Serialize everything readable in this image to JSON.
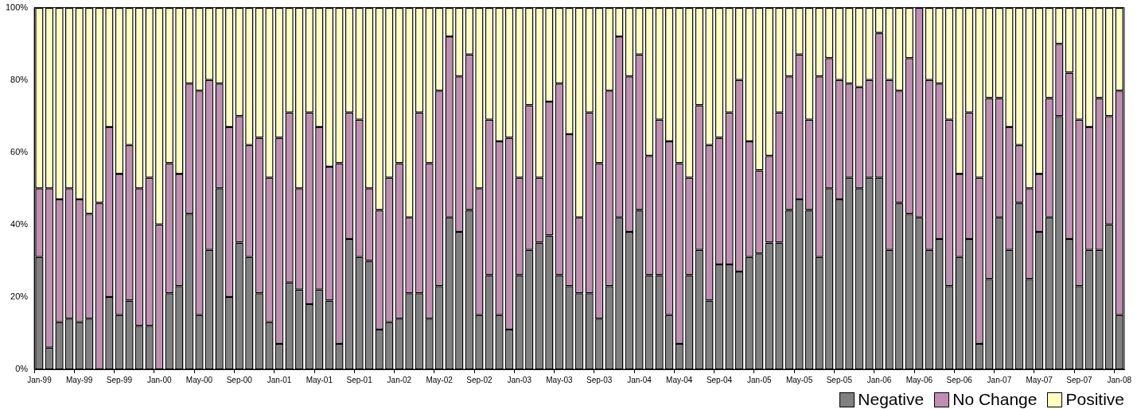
{
  "chart_data": {
    "type": "bar",
    "stacked": true,
    "legend": "bottom right",
    "categories": [
      "Jan-99",
      null,
      null,
      null,
      "May-99",
      null,
      null,
      null,
      "Sep-99",
      null,
      null,
      null,
      "Jan-00",
      null,
      null,
      null,
      "May-00",
      null,
      null,
      null,
      "Sep-00",
      null,
      null,
      null,
      "Jan-01",
      null,
      null,
      null,
      "May-01",
      null,
      null,
      null,
      "Sep-01",
      null,
      null,
      null,
      "Jan-02",
      null,
      null,
      null,
      "May-02",
      null,
      null,
      null,
      "Sep-02",
      null,
      null,
      null,
      "Jan-03",
      null,
      null,
      null,
      "May-03",
      null,
      null,
      null,
      "Sep-03",
      null,
      null,
      null,
      "Jan-04",
      null,
      null,
      null,
      "May-04",
      null,
      null,
      null,
      "Sep-04",
      null,
      null,
      null,
      "Jan-05",
      null,
      null,
      null,
      "May-05",
      null,
      null,
      null,
      "Sep-05",
      null,
      null,
      null,
      "Jan-06",
      null,
      null,
      null,
      "May-06",
      null,
      null,
      null,
      "Sep-06",
      null,
      null,
      null,
      "Jan-07",
      null,
      null,
      null,
      "May-07",
      null,
      null,
      null,
      "Sep-07",
      null,
      null,
      null,
      "Jan-08"
    ],
    "series": [
      {
        "name": "Negative",
        "color": "#808080",
        "values": [
          31,
          6,
          13,
          14,
          13,
          14,
          0,
          20,
          15,
          19,
          12,
          12,
          0,
          21,
          23,
          43,
          15,
          33,
          50,
          20,
          35,
          31,
          21,
          13,
          7,
          24,
          22,
          18,
          22,
          19,
          7,
          36,
          31,
          30,
          11,
          13,
          14,
          21,
          21,
          14,
          23,
          42,
          38,
          44,
          15,
          26,
          15,
          11,
          26,
          33,
          35,
          37,
          26,
          23,
          21,
          21,
          14,
          23,
          42,
          38,
          44,
          26,
          26,
          15,
          7,
          26,
          33,
          19,
          29,
          29,
          27,
          31,
          32,
          35,
          35,
          44,
          47,
          44,
          31,
          50,
          47,
          53,
          50,
          53,
          53,
          33,
          46,
          43,
          42,
          33,
          36,
          23,
          31,
          36,
          7,
          25,
          42,
          33,
          46,
          25,
          38,
          42,
          70,
          36,
          23,
          33,
          33,
          40,
          15
        ]
      },
      {
        "name": "No Change",
        "color": "#c08eb0",
        "values": [
          19,
          44,
          34,
          36,
          34,
          29,
          46,
          47,
          39,
          43,
          38,
          41,
          40,
          36,
          31,
          36,
          62,
          47,
          29,
          47,
          35,
          31,
          43,
          40,
          57,
          47,
          28,
          53,
          45,
          37,
          50,
          35,
          38,
          20,
          33,
          40,
          43,
          21,
          50,
          43,
          54,
          50,
          43,
          43,
          35,
          43,
          48,
          53,
          27,
          40,
          18,
          37,
          53,
          42,
          21,
          50,
          43,
          54,
          50,
          43,
          43,
          33,
          43,
          48,
          50,
          27,
          40,
          43,
          35,
          42,
          53,
          32,
          23,
          24,
          36,
          37,
          40,
          25,
          50,
          36,
          33,
          26,
          28,
          27,
          40,
          47,
          31,
          43,
          58,
          47,
          43,
          46,
          23,
          35,
          46,
          50,
          33,
          34,
          16,
          25,
          16,
          33,
          20,
          46,
          46,
          34,
          42,
          30,
          62
        ]
      },
      {
        "name": "Positive",
        "color": "#ffffc0",
        "values": [
          50,
          50,
          53,
          50,
          53,
          57,
          54,
          33,
          46,
          38,
          50,
          47,
          60,
          43,
          46,
          21,
          23,
          20,
          21,
          33,
          30,
          38,
          36,
          47,
          36,
          29,
          50,
          29,
          33,
          44,
          43,
          29,
          31,
          50,
          56,
          47,
          43,
          58,
          29,
          43,
          23,
          8,
          19,
          13,
          50,
          31,
          37,
          36,
          47,
          27,
          47,
          26,
          21,
          35,
          58,
          29,
          43,
          23,
          8,
          19,
          13,
          41,
          31,
          37,
          43,
          47,
          27,
          38,
          36,
          29,
          20,
          37,
          45,
          41,
          29,
          19,
          13,
          31,
          19,
          14,
          20,
          21,
          22,
          20,
          7,
          20,
          23,
          14,
          0,
          20,
          21,
          31,
          46,
          29,
          47,
          25,
          25,
          33,
          38,
          50,
          46,
          25,
          10,
          18,
          31,
          33,
          25,
          30,
          23
        ]
      }
    ],
    "ylim": [
      0,
      100
    ],
    "yticks": [
      {
        "value": 0,
        "label": "0%"
      },
      {
        "value": 20,
        "label": "20%"
      },
      {
        "value": 40,
        "label": "40%"
      },
      {
        "value": 60,
        "label": "60%"
      },
      {
        "value": 80,
        "label": "80%"
      },
      {
        "value": 100,
        "label": "100%"
      }
    ]
  }
}
